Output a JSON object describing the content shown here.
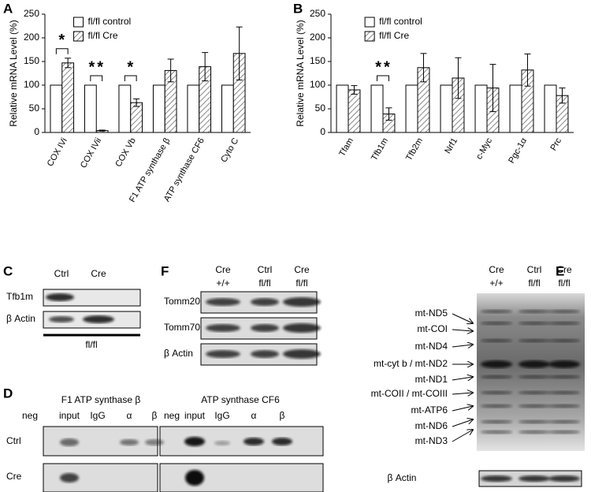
{
  "chart_data": [
    {
      "type": "bar",
      "panel_label": "A",
      "ylabel": "Relative mRNA Level (%)",
      "categories": [
        "COX IVi",
        "COX IVii",
        "COX Vb",
        "F1 ATP synthase β",
        "ATP synthase CF6",
        "Cyto C"
      ],
      "series": [
        {
          "name": "fl/fl control",
          "color": "#ffffff",
          "values": [
            100,
            100,
            100,
            100,
            100,
            100
          ]
        },
        {
          "name": "fl/fl Cre",
          "color": "#ffffff",
          "hatch": true,
          "values": [
            147,
            4,
            63,
            131,
            139,
            167
          ],
          "errors": [
            10,
            1,
            8,
            24,
            30,
            56
          ]
        }
      ],
      "annotations": [
        {
          "label": "*",
          "category": "COX IVi"
        },
        {
          "label": "**",
          "category": "COX IVii"
        },
        {
          "label": "*",
          "category": "COX Vb"
        }
      ],
      "ylim": [
        0,
        250
      ],
      "yticks": [
        0,
        50,
        100,
        150,
        200,
        250
      ],
      "legend": "upper left"
    },
    {
      "type": "bar",
      "panel_label": "B",
      "ylabel": "Relative mRNA Level (%)",
      "categories": [
        "Tfam",
        "Tfb1m",
        "Tfb2m",
        "Nrf1",
        "c-Myc",
        "Pgc-1α",
        "Prc"
      ],
      "series": [
        {
          "name": "fl/fl control",
          "color": "#ffffff",
          "values": [
            100,
            100,
            100,
            100,
            100,
            100,
            100
          ]
        },
        {
          "name": "fl/fl Cre",
          "color": "#ffffff",
          "hatch": true,
          "values": [
            90,
            39,
            137,
            115,
            94,
            132,
            78
          ],
          "errors": [
            9,
            13,
            30,
            43,
            50,
            34,
            16
          ]
        }
      ],
      "annotations": [
        {
          "label": "**",
          "category": "Tfb1m"
        }
      ],
      "ylim": [
        0,
        250
      ],
      "yticks": [
        0,
        50,
        100,
        150,
        200,
        250
      ],
      "legend": "upper left"
    }
  ],
  "panel_c": {
    "label": "C",
    "columns": [
      "Ctrl",
      "Cre"
    ],
    "rows": [
      "Tfb1m",
      "β Actin"
    ],
    "genotype": "fl/fl"
  },
  "panel_f": {
    "label": "F",
    "columns": [
      {
        "top": "Cre",
        "bottom": "+/+"
      },
      {
        "top": "Ctrl",
        "bottom": "fl/fl"
      },
      {
        "top": "Cre",
        "bottom": "fl/fl"
      }
    ],
    "rows": [
      "Tomm20",
      "Tomm70",
      "β Actin"
    ]
  },
  "panel_e": {
    "label": "E",
    "columns": [
      {
        "top": "Cre",
        "bottom": "+/+"
      },
      {
        "top": "Ctrl",
        "bottom": "fl/fl"
      },
      {
        "top": "Cre",
        "bottom": "fl/fl"
      }
    ],
    "bands": [
      "mt-ND5",
      "mt-COI",
      "mt-ND4",
      "mt-cyt b / mt-ND2",
      "mt-ND1",
      "mt-COII / mt-COIII",
      "mt-ATP6",
      "mt-ND6",
      "mt-ND3"
    ],
    "loading_control": "β Actin"
  },
  "panel_d": {
    "label": "D",
    "groups": [
      {
        "title": "F1 ATP synthase β",
        "lanes": [
          "neg",
          "input",
          "IgG",
          "α",
          "β"
        ]
      },
      {
        "title": "ATP synthase CF6",
        "lanes": [
          "neg",
          "input",
          "IgG",
          "α",
          "β"
        ]
      }
    ],
    "rows": [
      "Ctrl",
      "Cre"
    ]
  }
}
